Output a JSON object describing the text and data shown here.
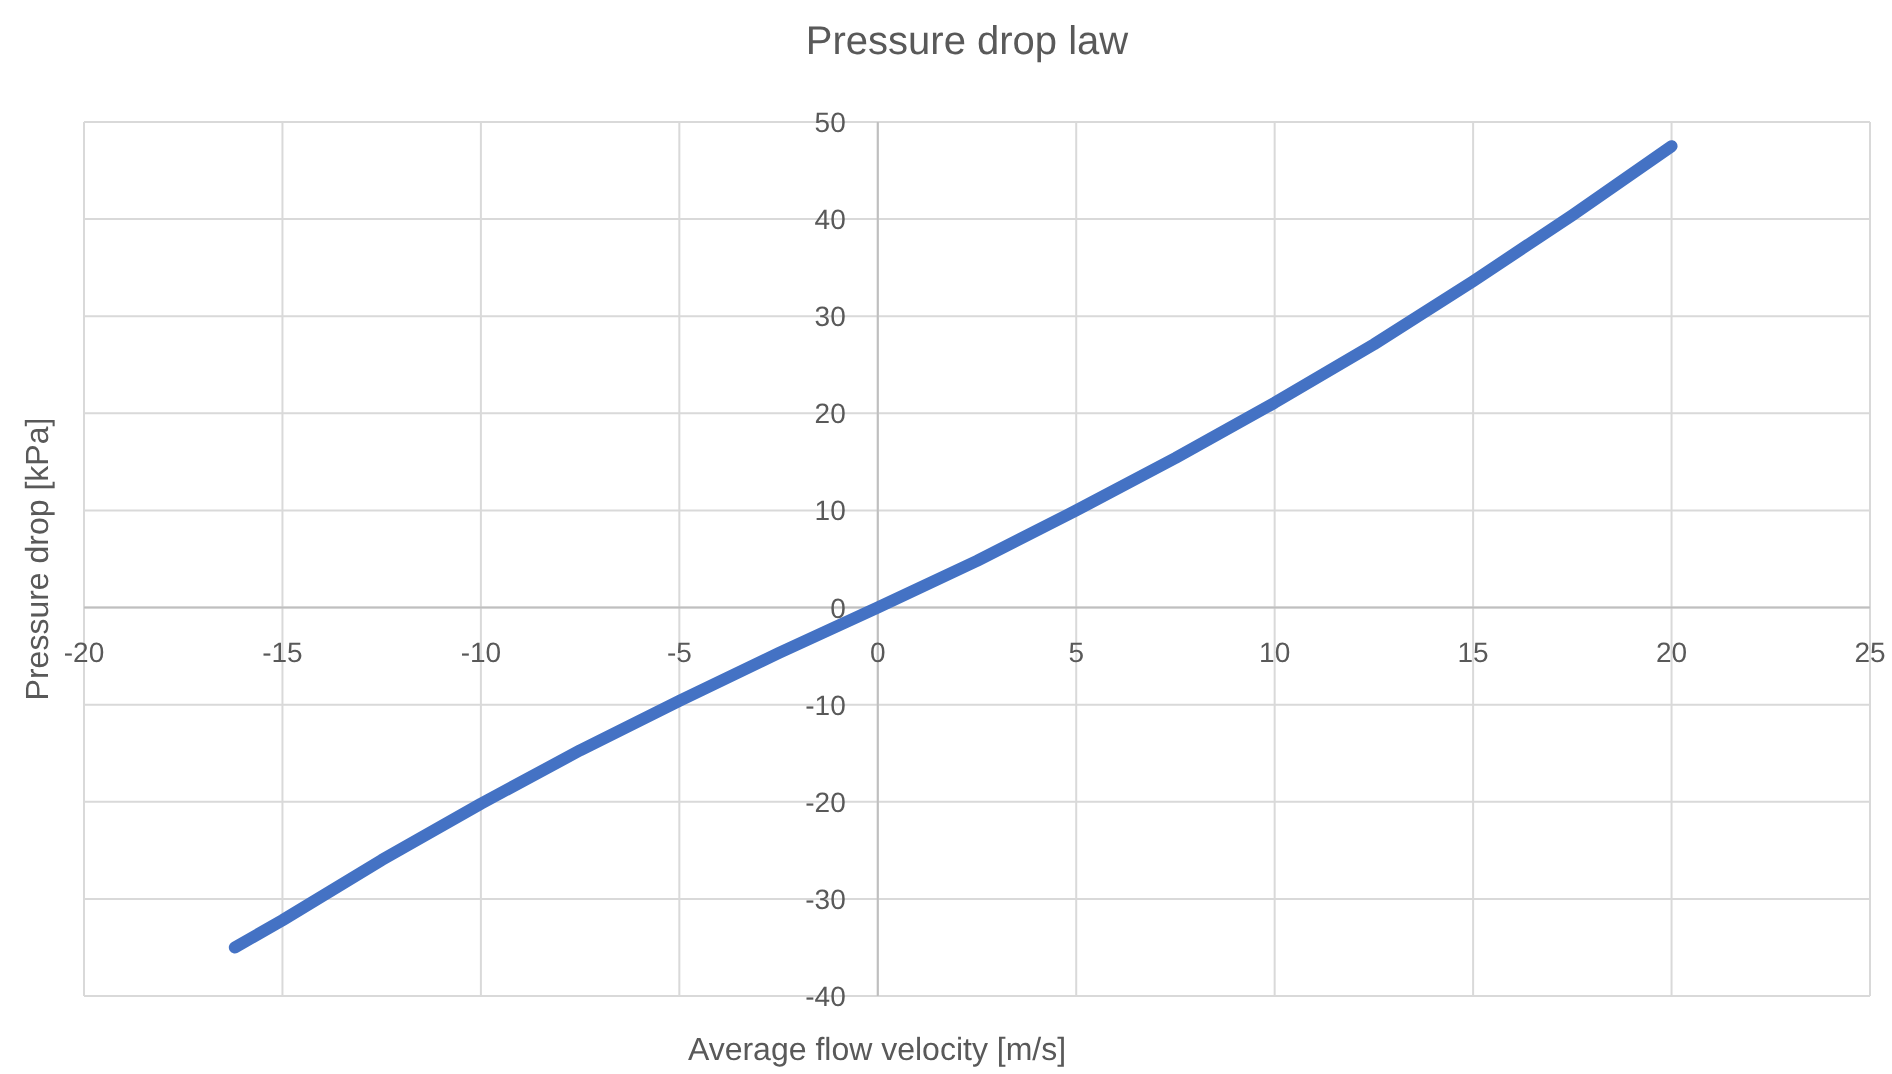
{
  "chart_data": {
    "type": "line",
    "title": "Pressure drop law",
    "xlabel": "Average flow velocity [m/s]",
    "ylabel": "Pressure drop [kPa]",
    "x": [
      -16.2,
      -15,
      -12.5,
      -10,
      -7.5,
      -5,
      -2.5,
      0,
      2.5,
      5,
      7.5,
      10,
      12.5,
      15,
      17.5,
      20
    ],
    "series": [
      {
        "color": "#4472c4",
        "values": [
          -35,
          -32.2,
          -26,
          -20.2,
          -14.7,
          -9.6,
          -4.7,
          0,
          4.8,
          10,
          15.4,
          21.1,
          27.1,
          33.6,
          40.4,
          47.5
        ]
      }
    ],
    "xlim": [
      -20,
      25
    ],
    "xticks": [
      -20,
      -15,
      -10,
      -5,
      0,
      5,
      10,
      15,
      20,
      25
    ],
    "ylim": [
      -40,
      50
    ],
    "yticks": [
      -40,
      -30,
      -20,
      -10,
      0,
      10,
      20,
      30,
      40,
      50
    ],
    "grid": true,
    "marker": "none",
    "line_style": "solid"
  }
}
